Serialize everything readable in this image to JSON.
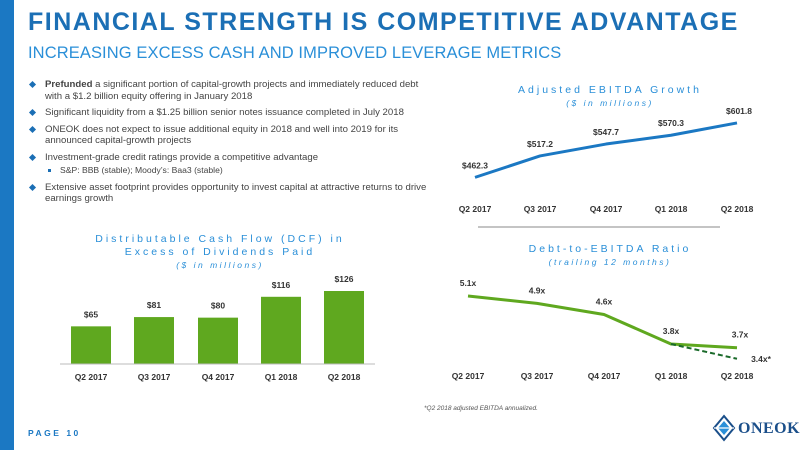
{
  "slide": {
    "title": "FINANCIAL STRENGTH IS COMPETITIVE ADVANTAGE",
    "subtitle": "INCREASING EXCESS CASH AND IMPROVED LEVERAGE METRICS",
    "page_label": "PAGE  10",
    "footnote": "*Q2 2018 adjusted EBITDA annualized.",
    "logo_text": "ONEOK",
    "accent_color": "#1b78c3"
  },
  "bullets": [
    {
      "lead": "Prefunded",
      "text": " a significant portion of capital-growth projects and immediately reduced debt with a $1.2 billion equity offering in January 2018"
    },
    {
      "lead": "",
      "text": "Significant liquidity from a $1.25 billion senior notes issuance completed in July 2018"
    },
    {
      "lead": "",
      "text": "ONEOK does not expect to issue additional equity in 2018 and well into 2019 for its announced capital-growth projects"
    },
    {
      "lead": "",
      "text": "Investment-grade credit ratings provide a competitive advantage"
    },
    {
      "lead": "",
      "text": "S&P: BBB (stable);  Moody’s: Baa3 (stable)",
      "sub": true
    },
    {
      "lead": "",
      "text": "Extensive asset footprint provides opportunity to invest capital at attractive returns to drive earnings growth"
    }
  ],
  "chart_data": [
    {
      "type": "line",
      "title": "Adjusted EBITDA Growth",
      "subtitle": "($ in millions)",
      "categories": [
        "Q2 2017",
        "Q3 2017",
        "Q4 2017",
        "Q1 2018",
        "Q2 2018"
      ],
      "values": [
        462.3,
        517.2,
        547.7,
        570.3,
        601.8
      ],
      "labels": [
        "$462.3",
        "$517.2",
        "$547.7",
        "$570.3",
        "$601.8"
      ],
      "ylim": [
        430,
        640
      ],
      "color": "#1b78c3"
    },
    {
      "type": "bar",
      "title": "Distributable Cash Flow (DCF) in Excess of Dividends Paid",
      "subtitle": "($ in millions)",
      "categories": [
        "Q2 2017",
        "Q3 2017",
        "Q4 2017",
        "Q1 2018",
        "Q2 2018"
      ],
      "values": [
        65,
        81,
        80,
        116,
        126
      ],
      "labels": [
        "$65",
        "$81",
        "$80",
        "$116",
        "$126"
      ],
      "ylim": [
        0,
        140
      ],
      "color": "#5fa81f"
    },
    {
      "type": "line",
      "title": "Debt-to-EBITDA Ratio",
      "subtitle": "(trailing 12 months)",
      "categories": [
        "Q2 2017",
        "Q3 2017",
        "Q4 2017",
        "Q1 2018",
        "Q2 2018"
      ],
      "values": [
        5.1,
        4.9,
        4.6,
        3.8,
        3.7
      ],
      "labels": [
        "5.1x",
        "4.9x",
        "4.6x",
        "3.8x",
        "3.7x"
      ],
      "annualized": {
        "from_category": "Q1 2018",
        "to_category": "Q2 2018",
        "from_value": 3.8,
        "value": 3.4,
        "label": "3.4x*",
        "style": "dashed"
      },
      "ylim": [
        3.0,
        5.6
      ],
      "color": "#5fa81f"
    }
  ]
}
